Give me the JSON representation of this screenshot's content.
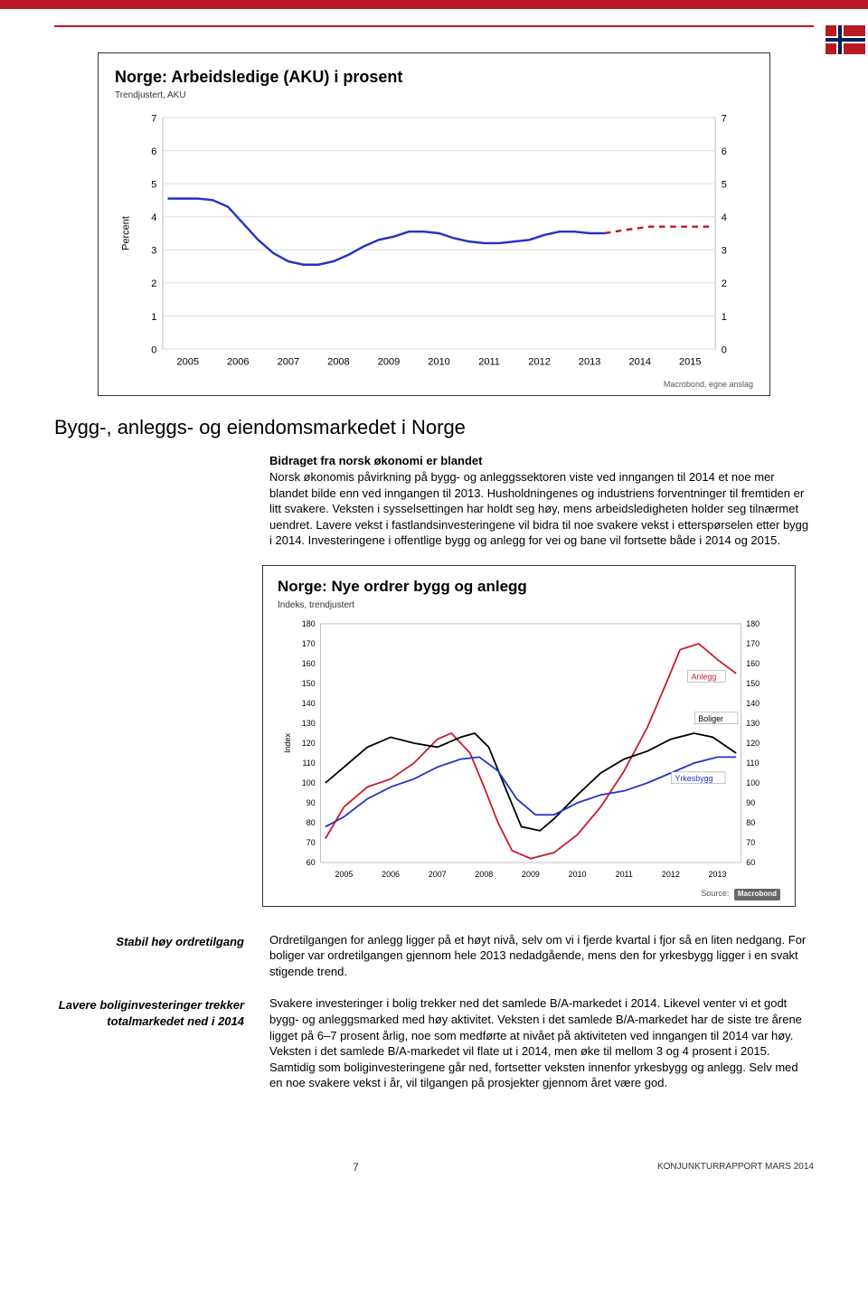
{
  "header": {
    "red": "#ba1a25"
  },
  "chart1": {
    "type": "line",
    "title": "Norge: Arbeidsledige (AKU) i prosent",
    "subtitle": "Trendjustert, AKU",
    "ylabel": "Percent",
    "ylim": [
      0,
      7
    ],
    "ytick_step": 1,
    "x_labels": [
      "2005",
      "2006",
      "2007",
      "2008",
      "2009",
      "2010",
      "2011",
      "2012",
      "2013",
      "2014",
      "2015"
    ],
    "x_span": [
      0,
      11
    ],
    "line_color": "#2232c8",
    "dash_color": "#ba1a25",
    "grid_color": "#e0e0e0",
    "plot_bg": "#ffffff",
    "solid_points": [
      [
        0.1,
        4.55
      ],
      [
        0.4,
        4.55
      ],
      [
        0.7,
        4.55
      ],
      [
        1.0,
        4.5
      ],
      [
        1.3,
        4.3
      ],
      [
        1.6,
        3.8
      ],
      [
        1.9,
        3.3
      ],
      [
        2.2,
        2.9
      ],
      [
        2.5,
        2.65
      ],
      [
        2.8,
        2.55
      ],
      [
        3.1,
        2.55
      ],
      [
        3.4,
        2.65
      ],
      [
        3.7,
        2.85
      ],
      [
        4.0,
        3.1
      ],
      [
        4.3,
        3.3
      ],
      [
        4.6,
        3.4
      ],
      [
        4.9,
        3.55
      ],
      [
        5.2,
        3.55
      ],
      [
        5.5,
        3.5
      ],
      [
        5.8,
        3.35
      ],
      [
        6.1,
        3.25
      ],
      [
        6.4,
        3.2
      ],
      [
        6.7,
        3.2
      ],
      [
        7.0,
        3.25
      ],
      [
        7.3,
        3.3
      ],
      [
        7.6,
        3.45
      ],
      [
        7.9,
        3.55
      ],
      [
        8.2,
        3.55
      ],
      [
        8.5,
        3.5
      ],
      [
        8.8,
        3.5
      ]
    ],
    "dash_points": [
      [
        8.8,
        3.5
      ],
      [
        9.2,
        3.6
      ],
      [
        9.7,
        3.7
      ],
      [
        10.5,
        3.7
      ],
      [
        10.9,
        3.7
      ]
    ],
    "footer": "Macrobond, egne anslag"
  },
  "section": {
    "title": "Bygg-, anleggs- og eiendomsmarkedet i Norge",
    "p1_lead": "Bidraget fra norsk økonomi er blandet",
    "p1_body": "Norsk økonomis påvirkning på bygg- og anleggssektoren viste ved inngangen til 2014 et noe mer blandet bilde enn ved inngangen til 2013. Husholdningenes og industriens forventninger til fremtiden er litt svakere. Veksten i sysselsettingen har holdt seg høy, mens arbeidsledigheten holder seg tilnærmet uendret. Lavere vekst i fastlandsinvesteringene vil bidra til noe svakere vekst i etterspørselen etter bygg i 2014. Investeringene i offentlige bygg og anlegg for vei og bane vil fortsette både i 2014 og 2015."
  },
  "chart2": {
    "type": "line",
    "title": "Norge: Nye ordrer bygg og anlegg",
    "subtitle": "Indeks, trendjustert",
    "ylabel": "Index",
    "ylim": [
      60,
      180
    ],
    "ytick_step": 10,
    "x_labels": [
      "2005",
      "2006",
      "2007",
      "2008",
      "2009",
      "2010",
      "2011",
      "2012",
      "2013"
    ],
    "x_span": [
      0,
      9
    ],
    "plot_bg": "#ffffff",
    "series": {
      "anlegg": {
        "color": "#c91b2e",
        "label": "Anlegg",
        "label_xy": [
          7.9,
          152
        ],
        "points": [
          [
            0.1,
            72
          ],
          [
            0.5,
            88
          ],
          [
            1.0,
            98
          ],
          [
            1.5,
            102
          ],
          [
            2.0,
            110
          ],
          [
            2.5,
            122
          ],
          [
            2.8,
            125
          ],
          [
            3.2,
            115
          ],
          [
            3.5,
            98
          ],
          [
            3.8,
            80
          ],
          [
            4.1,
            66
          ],
          [
            4.5,
            62
          ],
          [
            5.0,
            65
          ],
          [
            5.5,
            74
          ],
          [
            6.0,
            88
          ],
          [
            6.5,
            106
          ],
          [
            7.0,
            128
          ],
          [
            7.4,
            150
          ],
          [
            7.7,
            167
          ],
          [
            8.1,
            170
          ],
          [
            8.5,
            162
          ],
          [
            8.9,
            155
          ]
        ]
      },
      "boliger": {
        "color": "#000000",
        "label": "Boliger",
        "label_xy": [
          8.05,
          131
        ],
        "points": [
          [
            0.1,
            100
          ],
          [
            0.5,
            108
          ],
          [
            1.0,
            118
          ],
          [
            1.5,
            123
          ],
          [
            2.0,
            120
          ],
          [
            2.5,
            118
          ],
          [
            3.0,
            123
          ],
          [
            3.3,
            125
          ],
          [
            3.6,
            118
          ],
          [
            4.0,
            95
          ],
          [
            4.3,
            78
          ],
          [
            4.7,
            76
          ],
          [
            5.0,
            82
          ],
          [
            5.5,
            94
          ],
          [
            6.0,
            105
          ],
          [
            6.5,
            112
          ],
          [
            7.0,
            116
          ],
          [
            7.5,
            122
          ],
          [
            8.0,
            125
          ],
          [
            8.4,
            123
          ],
          [
            8.9,
            115
          ]
        ]
      },
      "yrkesbygg": {
        "color": "#2232c8",
        "label": "Yrkesbygg",
        "label_xy": [
          7.55,
          101
        ],
        "points": [
          [
            0.1,
            78
          ],
          [
            0.5,
            83
          ],
          [
            1.0,
            92
          ],
          [
            1.5,
            98
          ],
          [
            2.0,
            102
          ],
          [
            2.5,
            108
          ],
          [
            3.0,
            112
          ],
          [
            3.4,
            113
          ],
          [
            3.8,
            106
          ],
          [
            4.2,
            92
          ],
          [
            4.6,
            84
          ],
          [
            5.0,
            84
          ],
          [
            5.5,
            90
          ],
          [
            6.0,
            94
          ],
          [
            6.5,
            96
          ],
          [
            7.0,
            100
          ],
          [
            7.5,
            105
          ],
          [
            8.0,
            110
          ],
          [
            8.5,
            113
          ],
          [
            8.9,
            113
          ]
        ]
      }
    },
    "footer_prefix": "Source:",
    "footer_badge": "Macrobond"
  },
  "block2": {
    "side1": "Stabil høy ordretilgang",
    "p2": "Ordretilgangen for anlegg ligger på et høyt nivå, selv om vi i fjerde kvartal i fjor så en liten nedgang. For boliger var ordretilgangen gjennom hele 2013 nedadgående, mens den for yrkesbygg ligger i en svakt stigende trend.",
    "side2": "Lavere boliginvesteringer trekker totalmarkedet ned i 2014",
    "p3": "Svakere investeringer i bolig trekker ned det samlede B/A-markedet i 2014. Likevel venter vi et godt bygg- og anleggsmarked med høy aktivitet. Veksten i det samlede B/A-markedet har de siste tre årene ligget på 6–7 prosent årlig, noe som medførte at nivået på aktiviteten ved inngangen til 2014 var høy. Veksten i det samlede B/A-markedet vil flate ut i 2014, men øke til mellom 3 og 4 prosent i 2015. Samtidig som boliginvesteringene går ned, fortsetter veksten innenfor yrkesbygg og anlegg. Selv med en noe svakere vekst i år, vil tilgangen på prosjekter gjennom året være god."
  },
  "footer": {
    "page": "7",
    "right": "KONJUNKTURRAPPORT MARS 2014"
  }
}
